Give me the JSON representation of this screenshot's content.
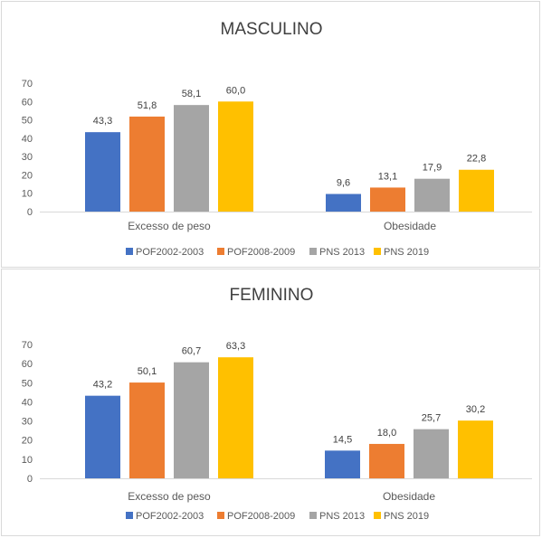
{
  "colors": {
    "POF2002-2003": "#4472c4",
    "POF2008-2009": "#ed7d31",
    "PNS 2013": "#a5a5a5",
    "PNS 2019": "#ffc000"
  },
  "chart_data": [
    {
      "type": "bar",
      "title": "MASCULINO",
      "categories": [
        "Excesso de peso",
        "Obesidade"
      ],
      "series": [
        {
          "name": "POF2002-2003",
          "values": [
            43.3,
            9.6
          ],
          "labels": [
            "43,3",
            "9,6"
          ]
        },
        {
          "name": "POF2008-2009",
          "values": [
            51.8,
            13.1
          ],
          "labels": [
            "51,8",
            "13,1"
          ]
        },
        {
          "name": "PNS 2013",
          "values": [
            58.1,
            17.9
          ],
          "labels": [
            "58,1",
            "17,9"
          ]
        },
        {
          "name": "PNS 2019",
          "values": [
            60.0,
            22.8
          ],
          "labels": [
            "60,0",
            "22,8"
          ]
        }
      ],
      "yticks": [
        "0",
        "10",
        "20",
        "30",
        "40",
        "50",
        "60",
        "70"
      ],
      "ylim": [
        0,
        70
      ],
      "grid": false,
      "legend": "bottom"
    },
    {
      "type": "bar",
      "title": "FEMININO",
      "categories": [
        "Excesso de peso",
        "Obesidade"
      ],
      "series": [
        {
          "name": "POF2002-2003",
          "values": [
            43.2,
            14.5
          ],
          "labels": [
            "43,2",
            "14,5"
          ]
        },
        {
          "name": "POF2008-2009",
          "values": [
            50.1,
            18.0
          ],
          "labels": [
            "50,1",
            "18,0"
          ]
        },
        {
          "name": "PNS 2013",
          "values": [
            60.7,
            25.7
          ],
          "labels": [
            "60,7",
            "25,7"
          ]
        },
        {
          "name": "PNS 2019",
          "values": [
            63.3,
            30.2
          ],
          "labels": [
            "63,3",
            "30,2"
          ]
        }
      ],
      "yticks": [
        "0",
        "10",
        "20",
        "30",
        "40",
        "50",
        "60",
        "70"
      ],
      "ylim": [
        0,
        70
      ],
      "grid": false,
      "legend": "bottom"
    }
  ]
}
